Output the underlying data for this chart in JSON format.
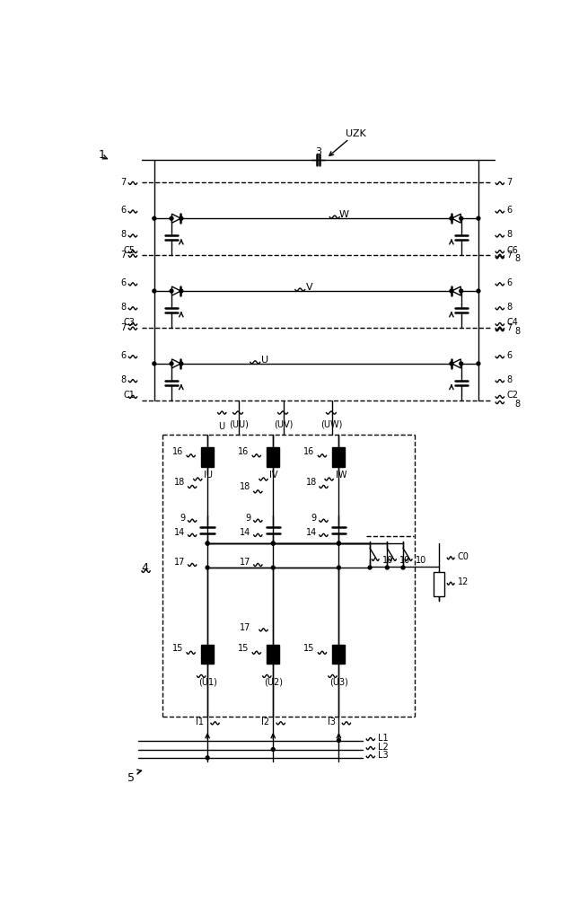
{
  "bg_color": "#ffffff",
  "line_color": "#000000",
  "figsize": [
    6.35,
    10.0
  ],
  "dpi": 100,
  "phase_labels": [
    "W",
    "V",
    "U"
  ],
  "c_labels_left": [
    "C5",
    "C3",
    "C1"
  ],
  "c_labels_right": [
    "C6",
    "C4",
    "C2"
  ],
  "inv_top_labels": [
    "IU",
    "IV",
    "IW"
  ],
  "inv_bot_labels": [
    "(U1)",
    "(U2)",
    "(U3)"
  ],
  "phase_out_labels": [
    "(UU)",
    "(UV)",
    "(UW)"
  ],
  "input_labels": [
    "I1",
    "I2",
    "I3"
  ],
  "bus_labels": [
    "L1",
    "L2",
    "L3"
  ]
}
